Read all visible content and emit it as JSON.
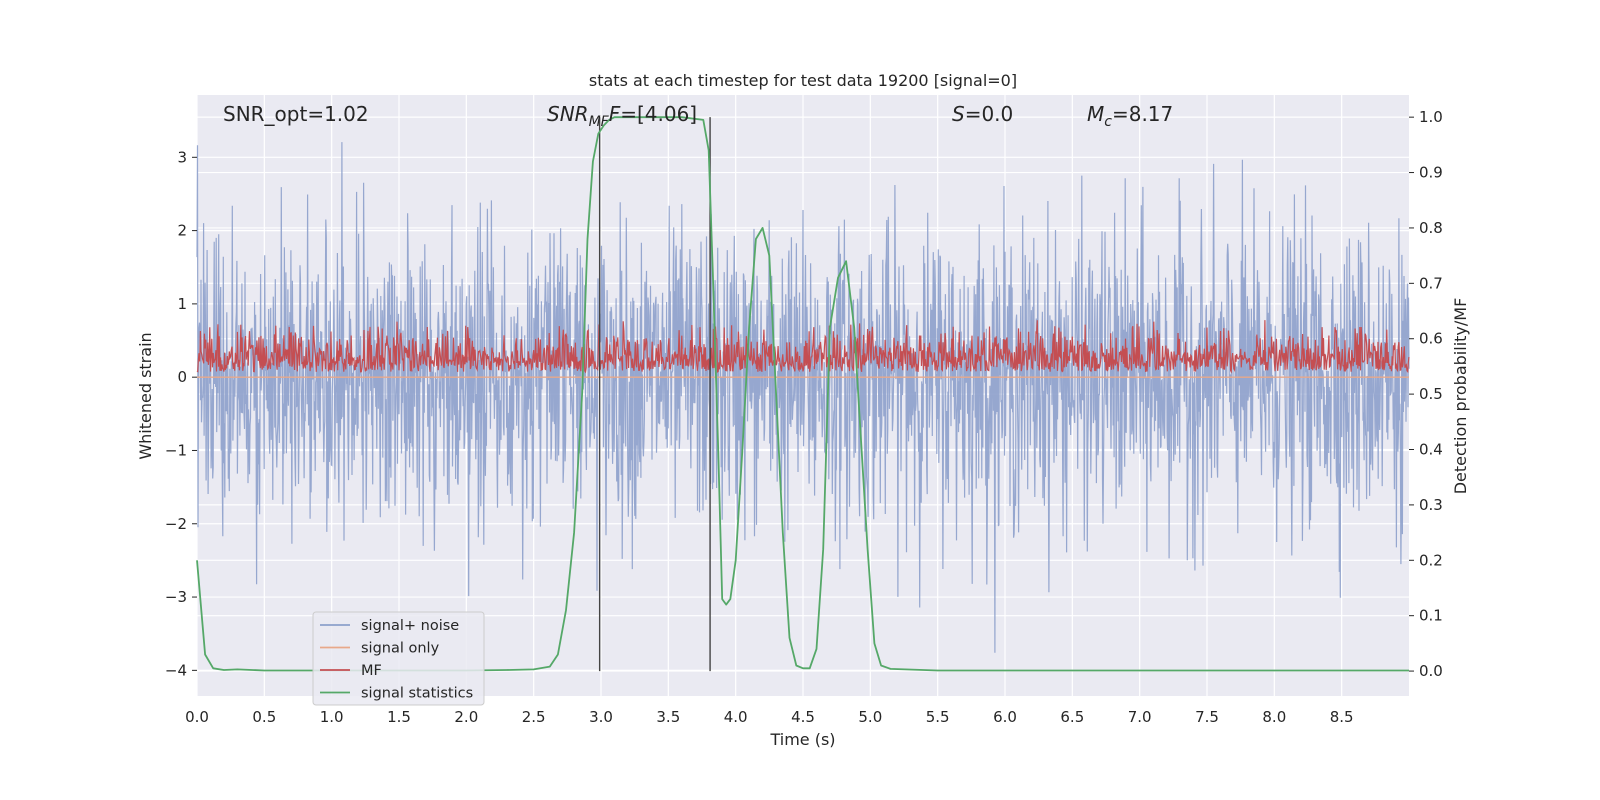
{
  "chart_data": {
    "type": "line",
    "title": "stats at each timestep for test data 19200 [signal=0]",
    "xlabel": "Time (s)",
    "ylabel_left": "Whitened strain",
    "ylabel_right": "Detection probability/MF",
    "xlim": [
      0.0,
      9.0
    ],
    "ylim_left": [
      -4.35,
      3.85
    ],
    "ylim_right": [
      -0.045,
      1.04
    ],
    "x_ticks": [
      "0.0",
      "0.5",
      "1.0",
      "1.5",
      "2.0",
      "2.5",
      "3.0",
      "3.5",
      "4.0",
      "4.5",
      "5.0",
      "5.5",
      "6.0",
      "6.5",
      "7.0",
      "7.5",
      "8.0",
      "8.5"
    ],
    "y_left_ticks": [
      "3",
      "2",
      "1",
      "0",
      "−1",
      "−2",
      "−3",
      "−4"
    ],
    "y_right_ticks": [
      "1.0",
      "0.9",
      "0.8",
      "0.7",
      "0.6",
      "0.5",
      "0.4",
      "0.3",
      "0.2",
      "0.1",
      "0.0"
    ],
    "grid": true,
    "legend": {
      "placement": "lower-left",
      "entries": [
        {
          "label": "signal+ noise",
          "color": "#8da0cb"
        },
        {
          "label": "signal only",
          "color": "#e8a88a"
        },
        {
          "label": "MF",
          "color": "#c44e52"
        },
        {
          "label": "signal statistics",
          "color": "#55a868"
        }
      ]
    },
    "annotations": {
      "snr_opt": "SNR_opt=1.02",
      "snr_mf_main": "SNR",
      "snr_mf_sub": "MF",
      "snr_mf_rest": "=[4.06]",
      "s_main": "S",
      "s_rest": "=0.0",
      "mc_main": "M",
      "mc_sub": "c",
      "mc_rest": "=8.17"
    },
    "vertical_markers_x": [
      2.99,
      3.81
    ],
    "colors": {
      "background": "#eaeaf2",
      "grid": "#ffffff",
      "noise": "#8da0cb",
      "signal_only": "#e8a88a",
      "mf": "#c44e52",
      "stats": "#55a868",
      "marker": "#444444"
    },
    "series": [
      {
        "name": "signal statistics",
        "axis": "right",
        "x": [
          0.0,
          0.06,
          0.12,
          0.2,
          0.3,
          0.5,
          1.0,
          1.5,
          2.0,
          2.3,
          2.5,
          2.62,
          2.68,
          2.74,
          2.8,
          2.86,
          2.9,
          2.94,
          2.98,
          3.02,
          3.06,
          3.1,
          3.2,
          3.4,
          3.6,
          3.76,
          3.8,
          3.83,
          3.87,
          3.9,
          3.93,
          3.96,
          4.0,
          4.05,
          4.1,
          4.15,
          4.2,
          4.25,
          4.3,
          4.35,
          4.4,
          4.45,
          4.5,
          4.55,
          4.6,
          4.65,
          4.7,
          4.76,
          4.82,
          4.88,
          4.93,
          4.98,
          5.03,
          5.08,
          5.15,
          5.5,
          6.0,
          7.0,
          8.0,
          9.0
        ],
        "y": [
          0.2,
          0.03,
          0.005,
          0.002,
          0.003,
          0.001,
          0.001,
          0.001,
          0.001,
          0.002,
          0.003,
          0.008,
          0.03,
          0.11,
          0.25,
          0.5,
          0.78,
          0.92,
          0.97,
          0.985,
          0.995,
          1.0,
          1.0,
          1.0,
          1.0,
          0.995,
          0.94,
          0.72,
          0.4,
          0.13,
          0.12,
          0.13,
          0.2,
          0.4,
          0.62,
          0.78,
          0.8,
          0.75,
          0.5,
          0.25,
          0.06,
          0.01,
          0.005,
          0.005,
          0.04,
          0.22,
          0.62,
          0.71,
          0.74,
          0.62,
          0.42,
          0.22,
          0.05,
          0.01,
          0.004,
          0.001,
          0.001,
          0.001,
          0.001,
          0.001
        ]
      }
    ]
  }
}
